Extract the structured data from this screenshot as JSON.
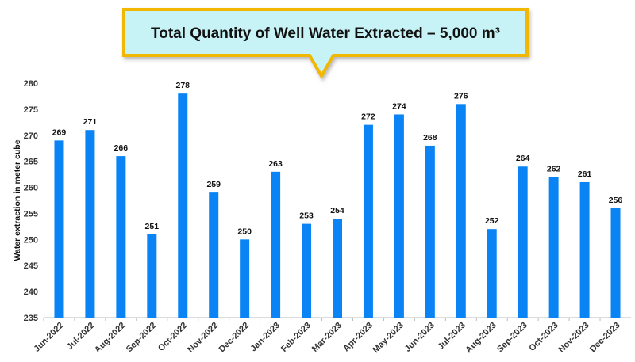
{
  "callout": {
    "title": "Total Quantity of Well Water Extracted – 5,000 m³"
  },
  "chart_data": {
    "type": "bar",
    "title": "Total Quantity of Well Water Extracted – 5,000 m³",
    "xlabel": "",
    "ylabel": "Water extraction in meter cube",
    "ylim": [
      235,
      280
    ],
    "yticks": [
      235,
      240,
      245,
      250,
      255,
      260,
      265,
      270,
      275,
      280
    ],
    "grid": false,
    "categories": [
      "Jun-2022",
      "Jul-2022",
      "Aug-2022",
      "Sep-2022",
      "Oct-2022",
      "Nov-2022",
      "Dec-2022",
      "Jan-2023",
      "Feb-2023",
      "Mar-2023",
      "Apr-2023",
      "May-2023",
      "Jun-2023",
      "Jul-2023",
      "Aug-2023",
      "Sep-2023",
      "Oct-2023",
      "Nov-2023",
      "Dec-2023"
    ],
    "values": [
      269,
      271,
      266,
      251,
      278,
      259,
      250,
      263,
      253,
      254,
      272,
      274,
      268,
      276,
      252,
      264,
      262,
      261,
      256
    ],
    "color": "#0a84f5"
  }
}
